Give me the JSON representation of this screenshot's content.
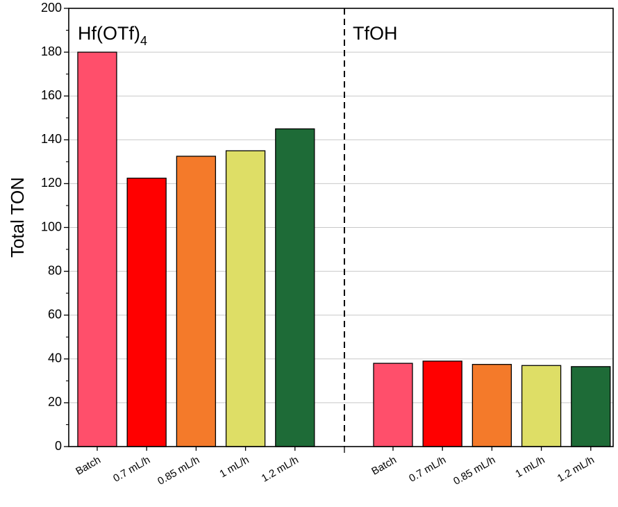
{
  "chart_data": {
    "type": "bar",
    "ylabel": "Total TON",
    "ylim": [
      0,
      200
    ],
    "yticks": [
      0,
      20,
      40,
      60,
      80,
      100,
      120,
      140,
      160,
      180,
      200
    ],
    "grid": "horizontal",
    "groups": [
      {
        "label": "Hf(OTf)",
        "label_subscript": "4",
        "categories": [
          "Batch",
          "0.7 mL/h",
          "0.85 mL/h",
          "1 mL/h",
          "1.2 mL/h"
        ],
        "values": [
          180,
          122.5,
          132.5,
          135,
          145
        ]
      },
      {
        "label": "TfOH",
        "categories": [
          "Batch",
          "0.7 mL/h",
          "0.85 mL/h",
          "1 mL/h",
          "1.2 mL/h"
        ],
        "values": [
          38,
          39,
          37.5,
          37,
          36.5
        ]
      }
    ],
    "colors": [
      "#ff4f6b",
      "#ff0000",
      "#f47a2a",
      "#dede66",
      "#1e6b37"
    ]
  }
}
